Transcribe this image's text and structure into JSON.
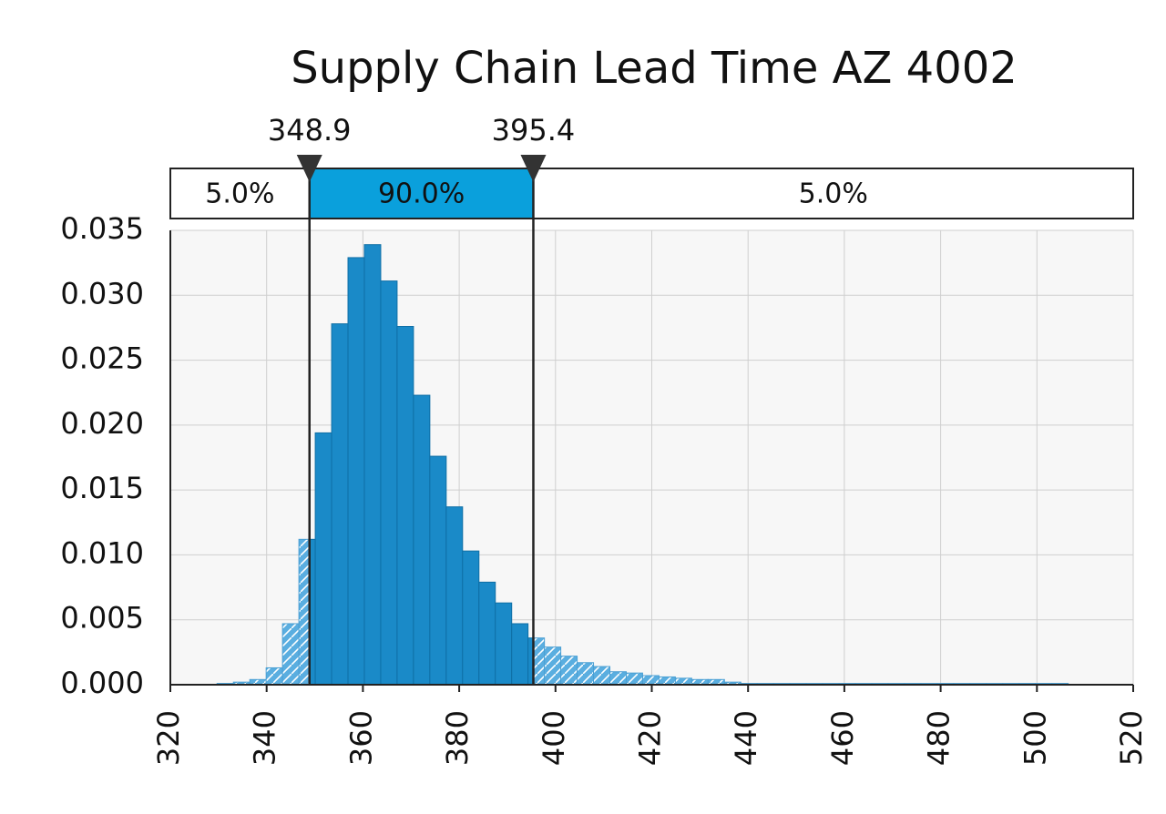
{
  "chart_data": {
    "type": "histogram",
    "title": "Supply Chain Lead Time AZ 4002",
    "bins": [
      329.7,
      333.1,
      336.5,
      339.9,
      343.3,
      346.7,
      350.1,
      353.5,
      356.9,
      360.3,
      363.7,
      367.1,
      370.5,
      373.9,
      377.3,
      380.7,
      384.1,
      387.5,
      390.9,
      394.3,
      397.7,
      401.1,
      404.5,
      407.9,
      411.3,
      414.7,
      418.1,
      421.5,
      424.9,
      428.3,
      431.7,
      435.1,
      438.5,
      441.9,
      445.3,
      448.7,
      452.1,
      455.5,
      458.9,
      462.3,
      465.7,
      469.1,
      472.5,
      475.9,
      479.3,
      482.7,
      486.1,
      489.5,
      492.9,
      496.3,
      499.7,
      503.1,
      506.5
    ],
    "values": [
      0.0001,
      0.0002,
      0.0004,
      0.0013,
      0.0047,
      0.0112,
      0.0194,
      0.0278,
      0.0329,
      0.0339,
      0.0311,
      0.0276,
      0.0223,
      0.0176,
      0.0137,
      0.0103,
      0.0079,
      0.0063,
      0.0047,
      0.0036,
      0.0029,
      0.0022,
      0.0017,
      0.0014,
      0.001,
      0.0009,
      0.0007,
      0.0006,
      0.0005,
      0.0004,
      0.0004,
      0.0002,
      0.0001,
      0.0001,
      0.0001,
      0.0001,
      0.0001,
      0.0001,
      0.0001,
      0.0001,
      0.0001,
      0.0001,
      0.0001,
      0.0001,
      0.0001,
      0.0001,
      0.0001,
      0.0001,
      0.0001,
      0.0001,
      0.0001,
      0.0001
    ],
    "color": "#1a8ac8",
    "outside_color": "#5aaee0",
    "delimiters": {
      "left": 348.9,
      "right": 395.4,
      "labels": [
        "5.0%",
        "90.0%",
        "5.0%"
      ]
    },
    "xlim": [
      320,
      520
    ],
    "xticks": [
      320,
      340,
      360,
      380,
      400,
      420,
      440,
      460,
      480,
      500,
      520
    ],
    "ylim": [
      0,
      0.035
    ],
    "yticks": [
      {
        "value": 0,
        "label": "0.000"
      },
      {
        "value": 0.005,
        "label": "0.005"
      },
      {
        "value": 0.01,
        "label": "0.010"
      },
      {
        "value": 0.015,
        "label": "0.015"
      },
      {
        "value": 0.02,
        "label": "0.020"
      },
      {
        "value": 0.025,
        "label": "0.025"
      },
      {
        "value": 0.03,
        "label": "0.030"
      },
      {
        "value": 0.035,
        "label": "0.035"
      }
    ],
    "grid": true
  }
}
